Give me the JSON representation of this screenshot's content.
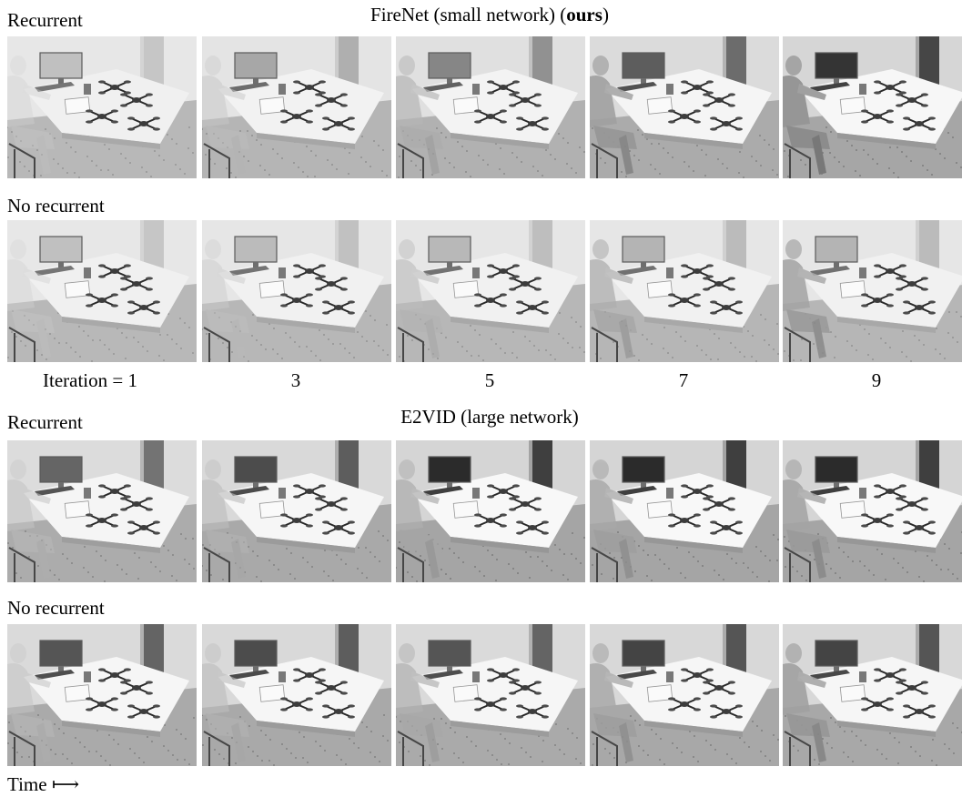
{
  "sections": [
    {
      "title_prefix": "FireNet (small network) (",
      "title_bold": "ours",
      "title_suffix": ")",
      "rows": [
        {
          "label": "Recurrent",
          "frames": [
            {
              "darkness": 0.05,
              "person": 0.15
            },
            {
              "darkness": 0.2,
              "person": 0.3
            },
            {
              "darkness": 0.4,
              "person": 0.55
            },
            {
              "darkness": 0.65,
              "person": 0.85
            },
            {
              "darkness": 0.9,
              "person": 1.0
            }
          ]
        },
        {
          "label": "No recurrent",
          "frames": [
            {
              "darkness": 0.05,
              "person": 0.15
            },
            {
              "darkness": 0.08,
              "person": 0.25
            },
            {
              "darkness": 0.1,
              "person": 0.45
            },
            {
              "darkness": 0.12,
              "person": 0.65
            },
            {
              "darkness": 0.12,
              "person": 0.8
            }
          ]
        }
      ]
    },
    {
      "title_prefix": "E2VID (large network)",
      "title_bold": "",
      "title_suffix": "",
      "rows": [
        {
          "label": "Recurrent",
          "frames": [
            {
              "darkness": 0.6,
              "person": 0.35
            },
            {
              "darkness": 0.75,
              "person": 0.45
            },
            {
              "darkness": 0.95,
              "person": 0.65
            },
            {
              "darkness": 0.95,
              "person": 0.75
            },
            {
              "darkness": 0.95,
              "person": 0.8
            }
          ]
        },
        {
          "label": "No recurrent",
          "frames": [
            {
              "darkness": 0.7,
              "person": 0.35
            },
            {
              "darkness": 0.75,
              "person": 0.45
            },
            {
              "darkness": 0.7,
              "person": 0.6
            },
            {
              "darkness": 0.8,
              "person": 0.75
            },
            {
              "darkness": 0.8,
              "person": 0.85
            }
          ]
        }
      ]
    }
  ],
  "iteration_labels": [
    "Iteration = 1",
    "3",
    "5",
    "7",
    "9"
  ],
  "time_label": "Time ⟼"
}
